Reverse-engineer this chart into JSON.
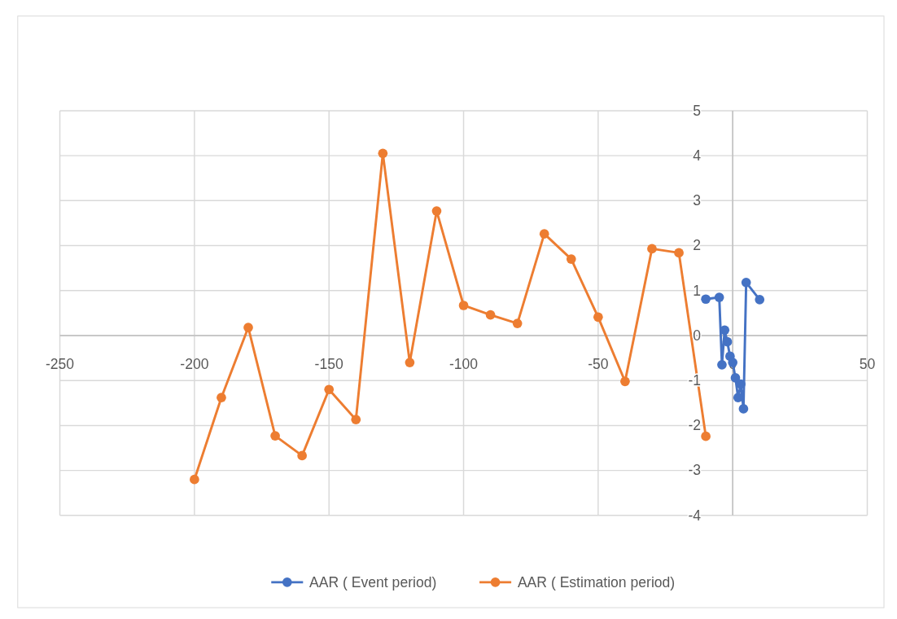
{
  "chart_data": {
    "type": "line",
    "series": [
      {
        "name": "AAR ( Event period)",
        "color": "#4472c4",
        "x": [
          -10,
          -5,
          -4,
          -3,
          -2,
          -1,
          0,
          1,
          2,
          3,
          4,
          5,
          10
        ],
        "values": [
          0.81,
          0.85,
          -0.65,
          0.12,
          -0.14,
          -0.46,
          -0.6,
          -0.94,
          -1.38,
          -1.08,
          -1.63,
          1.18,
          0.8
        ]
      },
      {
        "name": "AAR ( Estimation period)",
        "color": "#ed7d31",
        "x": [
          -200,
          -190,
          -180,
          -170,
          -160,
          -150,
          -140,
          -130,
          -120,
          -110,
          -100,
          -90,
          -80,
          -70,
          -60,
          -50,
          -40,
          -30,
          -20,
          -10
        ],
        "values": [
          -3.2,
          -1.38,
          0.18,
          -2.23,
          -2.67,
          -1.2,
          -1.87,
          4.05,
          -0.6,
          2.77,
          0.67,
          0.46,
          0.27,
          2.26,
          1.7,
          0.41,
          -1.02,
          1.93,
          1.84,
          -2.24
        ]
      }
    ],
    "xlim": [
      -250,
      50
    ],
    "xticks": [
      -250,
      -200,
      -150,
      -100,
      -50,
      0,
      50
    ],
    "ylim": [
      -4,
      5
    ],
    "yticks": [
      -4,
      -3,
      -2,
      -1,
      0,
      1,
      2,
      3,
      4,
      5
    ],
    "grid": true,
    "legend": "bottom",
    "marker": "circle",
    "line_style": "solid"
  }
}
